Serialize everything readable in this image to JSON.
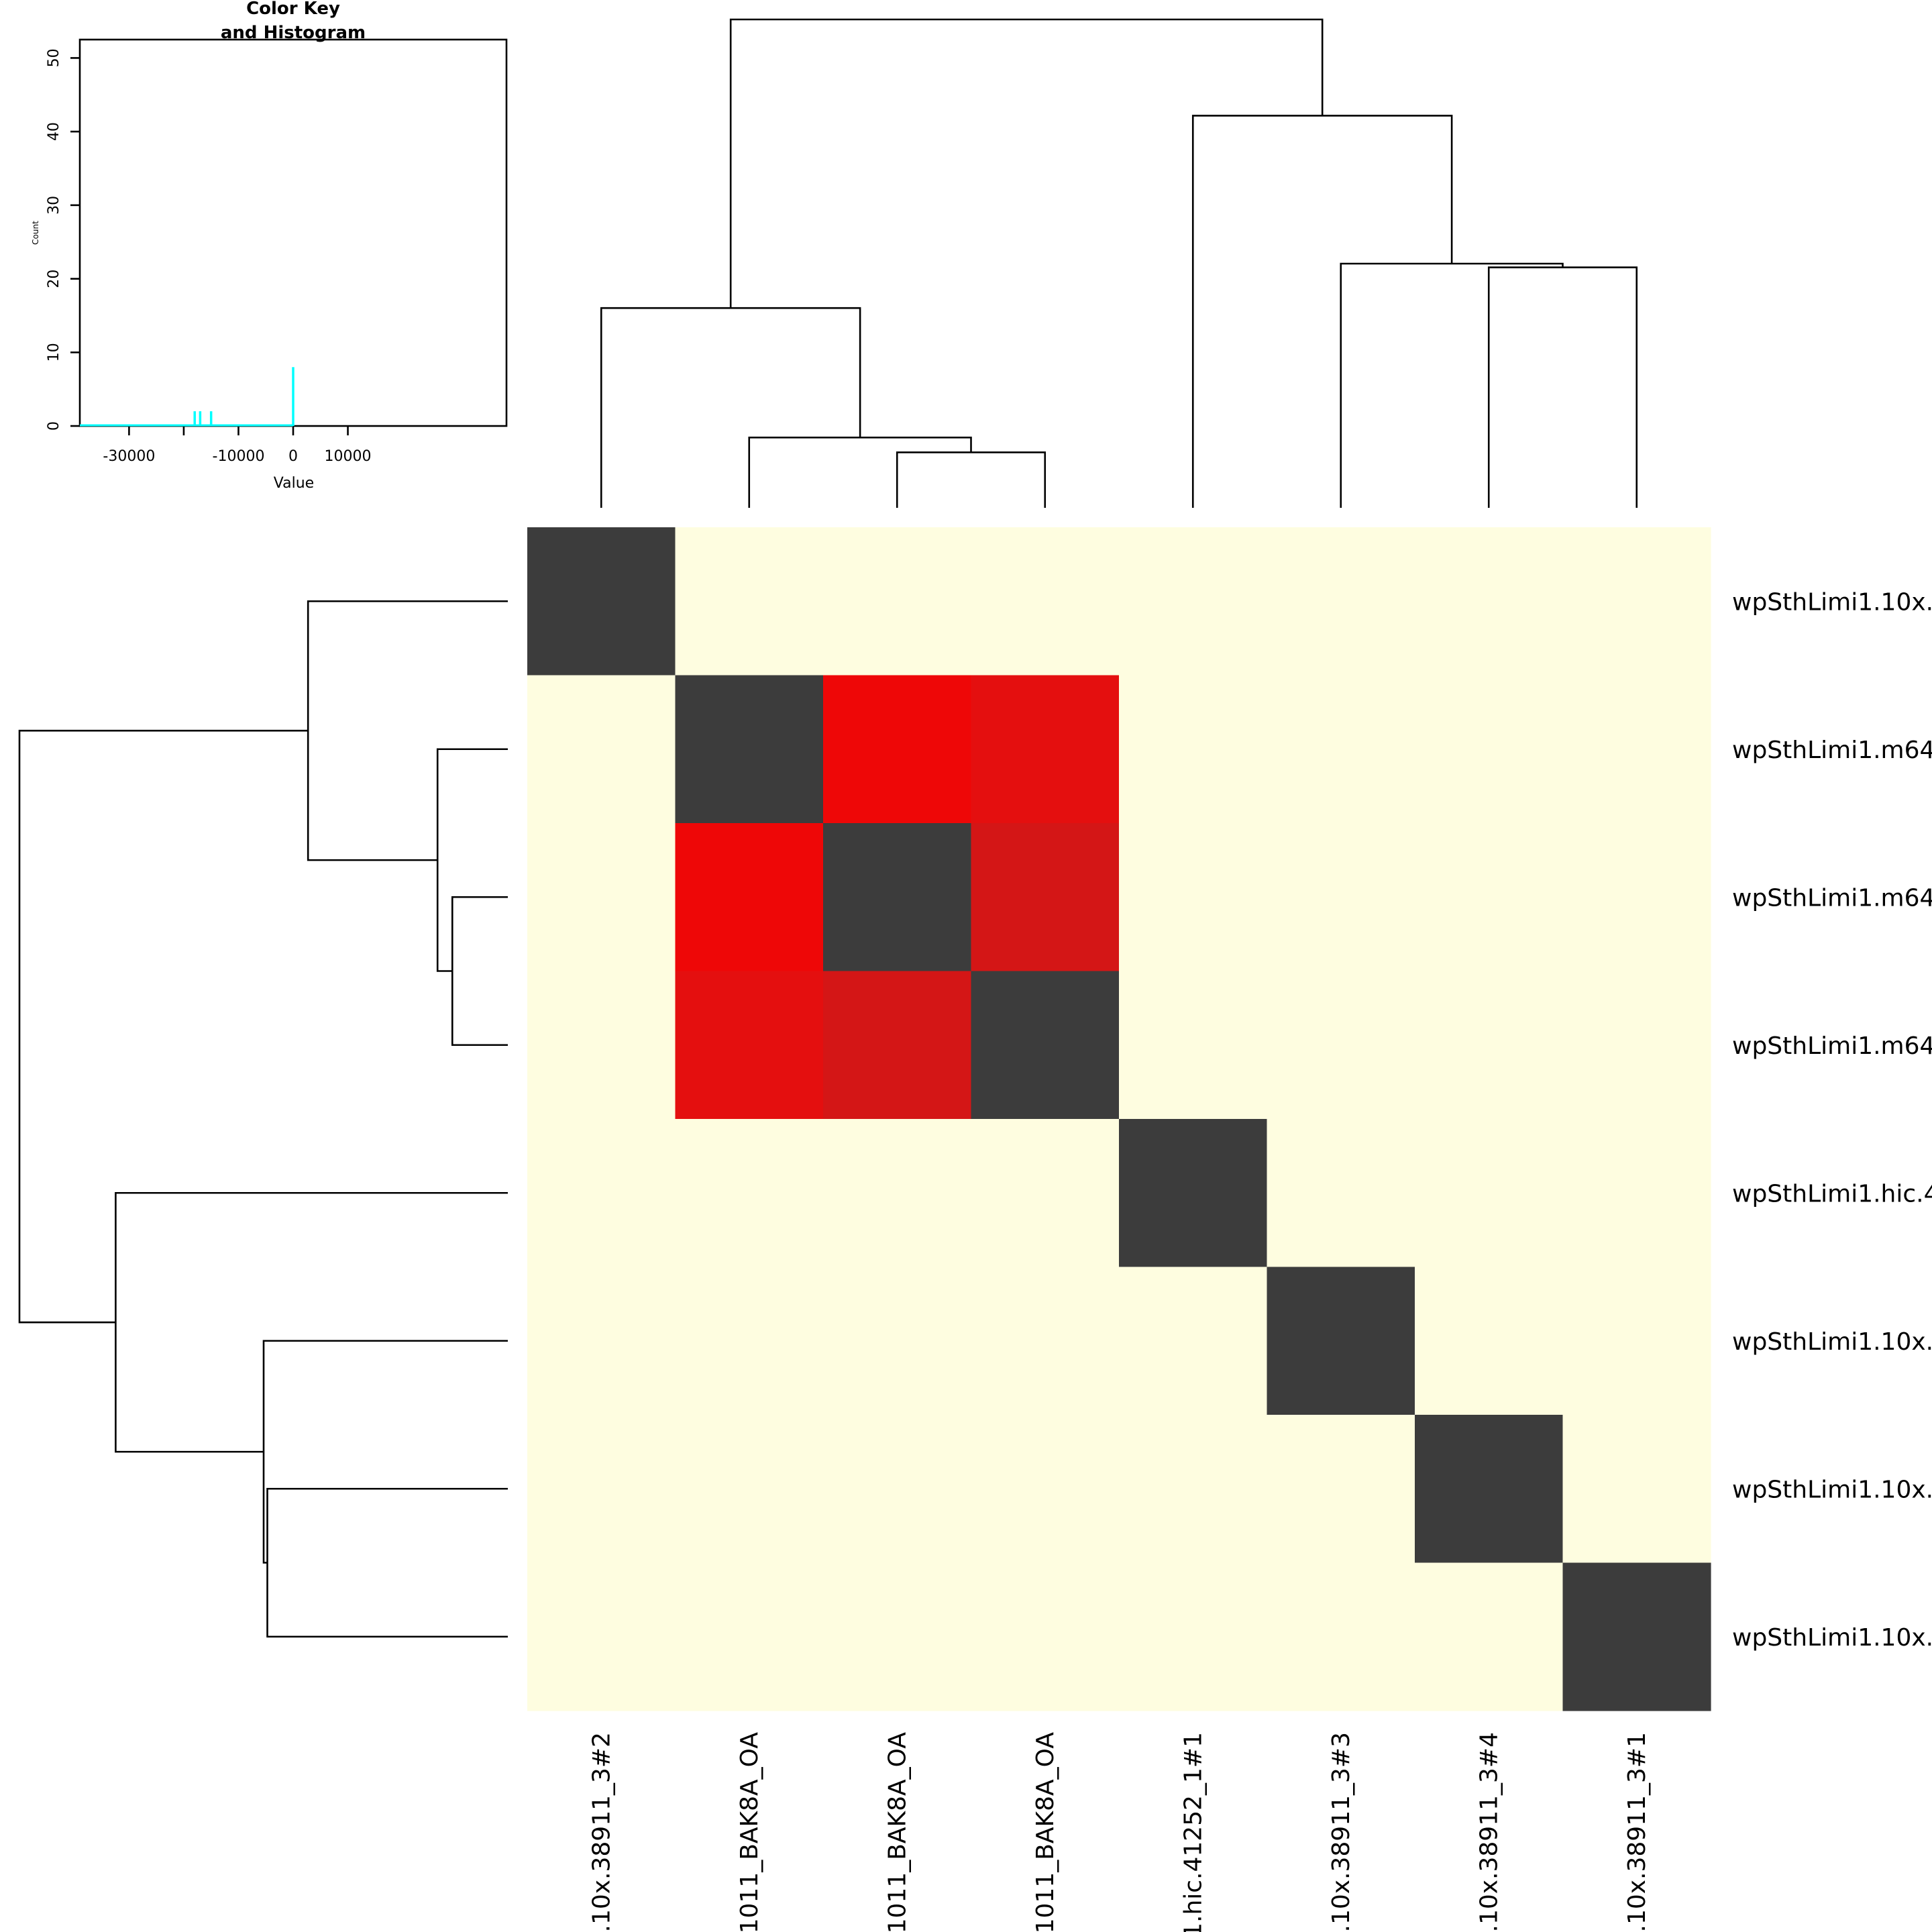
{
  "chart_data": [
    {
      "type": "heatmap",
      "row_labels": [
        "wpSthLimi1.10x.",
        "wpSthLimi1.m64",
        "wpSthLimi1.m64",
        "wpSthLimi1.m64",
        "wpSthLimi1.hic.4",
        "wpSthLimi1.10x.",
        "wpSthLimi1.10x.",
        "wpSthLimi1.10x."
      ],
      "col_labels": [
        ".10x.38911_3#2",
        "1011_BAK8A_OA",
        "1011_BAK8A_OA",
        "1011_BAK8A_OA",
        "1.hic.41252_1#1",
        ".10x.38911_3#3",
        ".10x.38911_3#4",
        ".10x.38911_3#1"
      ],
      "cell_colors": [
        [
          "#3c3c3c",
          "#fefde0",
          "#fefde0",
          "#fefde0",
          "#fefde0",
          "#fefde0",
          "#fefde0",
          "#fefde0"
        ],
        [
          "#fefde0",
          "#3c3c3c",
          "#ee0707",
          "#e40f0f",
          "#fefde0",
          "#fefde0",
          "#fefde0",
          "#fefde0"
        ],
        [
          "#fefde0",
          "#ee0707",
          "#3c3c3c",
          "#d41616",
          "#fefde0",
          "#fefde0",
          "#fefde0",
          "#fefde0"
        ],
        [
          "#fefde0",
          "#e40f0f",
          "#d41616",
          "#3c3c3c",
          "#fefde0",
          "#fefde0",
          "#fefde0",
          "#fefde0"
        ],
        [
          "#fefde0",
          "#fefde0",
          "#fefde0",
          "#fefde0",
          "#3c3c3c",
          "#fefde0",
          "#fefde0",
          "#fefde0"
        ],
        [
          "#fefde0",
          "#fefde0",
          "#fefde0",
          "#fefde0",
          "#fefde0",
          "#3c3c3c",
          "#fefde0",
          "#fefde0"
        ],
        [
          "#fefde0",
          "#fefde0",
          "#fefde0",
          "#fefde0",
          "#fefde0",
          "#fefde0",
          "#3c3c3c",
          "#fefde0"
        ],
        [
          "#fefde0",
          "#fefde0",
          "#fefde0",
          "#fefde0",
          "#fefde0",
          "#fefde0",
          "#fefde0",
          "#3c3c3c"
        ]
      ],
      "col_dendrogram": {
        "merges": [
          {
            "left": 2,
            "right": 3,
            "height": 7.5
          },
          {
            "left": 1,
            "right": "m0",
            "height": 9.5
          },
          {
            "left": 0,
            "right": "m1",
            "height": 27
          },
          {
            "left": 6,
            "right": 7,
            "height": 32.5
          },
          {
            "left": 5,
            "right": "m3",
            "height": 33
          },
          {
            "left": 4,
            "right": "m4",
            "height": 53
          },
          {
            "left": "m2",
            "right": "m5",
            "height": 66
          }
        ],
        "max_height": 66
      },
      "row_dendrogram": {
        "merges": [
          {
            "left": 2,
            "right": 3,
            "height": 7.5
          },
          {
            "left": 1,
            "right": "m0",
            "height": 9.5
          },
          {
            "left": 0,
            "right": "m1",
            "height": 27
          },
          {
            "left": 6,
            "right": 7,
            "height": 32.5
          },
          {
            "left": 5,
            "right": "m3",
            "height": 33
          },
          {
            "left": 4,
            "right": "m4",
            "height": 53
          },
          {
            "left": "m2",
            "right": "m5",
            "height": 66
          }
        ],
        "max_height": 66
      }
    },
    {
      "type": "histogram",
      "title_lines": [
        "Color Key",
        "and Histogram"
      ],
      "xlabel": "Value",
      "ylabel": "Count",
      "x_ticks": [
        -30000,
        -10000,
        0,
        10000
      ],
      "x_tick_labels": [
        "-30000",
        "",
        "-10000",
        "0",
        "10000"
      ],
      "x_minor_tick": -20000,
      "y_ticks": [
        0,
        10,
        20,
        30,
        40,
        50
      ],
      "xlim": [
        -39000,
        39000
      ],
      "ylim": [
        0,
        52.5
      ],
      "line_color": "#00ffff",
      "density_line": [
        [
          -39000,
          0
        ],
        [
          0,
          0
        ]
      ],
      "bars": [
        {
          "x": -18000,
          "count": 2
        },
        {
          "x": -17000,
          "count": 2
        },
        {
          "x": -15000,
          "count": 2
        },
        {
          "x": 0,
          "count": 8
        }
      ]
    }
  ]
}
